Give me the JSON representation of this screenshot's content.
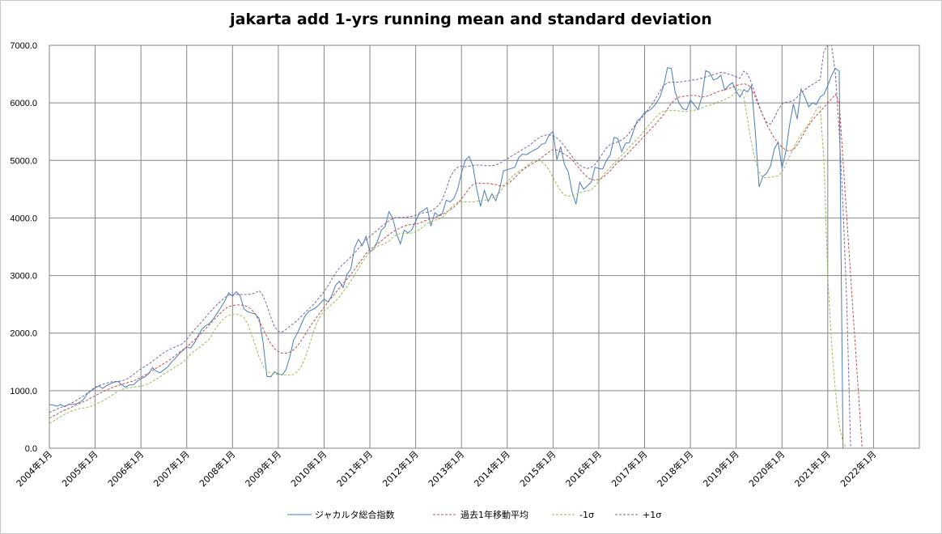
{
  "chart_data": {
    "type": "line",
    "title": "jakarta add 1-yrs running mean and standard deviation",
    "xlabel": "",
    "ylabel": "",
    "ylim": [
      0,
      7000
    ],
    "y_ticks": [
      "0.0",
      "1000.0",
      "2000.0",
      "3000.0",
      "4000.0",
      "5000.0",
      "6000.0",
      "7000.0"
    ],
    "x_ticks": [
      "2004年1月",
      "2005年1月",
      "2006年1月",
      "2007年1月",
      "2008年1月",
      "2009年1月",
      "2010年1月",
      "2011年1月",
      "2012年1月",
      "2013年1月",
      "2014年1月",
      "2015年1月",
      "2016年1月",
      "2017年1月",
      "2018年1月",
      "2019年1月",
      "2020年1月",
      "2021年1月",
      "2022年1月"
    ],
    "grid": true,
    "legend_position": "bottom",
    "x_start": "2004年1月",
    "x_step": "1 month",
    "series": [
      {
        "name": "ジャカルタ総合指数",
        "color": "#4a7ebb",
        "dash": "solid",
        "values": [
          760,
          750,
          730,
          760,
          720,
          760,
          760,
          770,
          800,
          850,
          950,
          1000,
          1050,
          1080,
          1040,
          1090,
          1120,
          1150,
          1160,
          1100,
          1060,
          1100,
          1100,
          1160,
          1210,
          1240,
          1290,
          1400,
          1340,
          1310,
          1360,
          1410,
          1500,
          1560,
          1640,
          1700,
          1760,
          1740,
          1830,
          1960,
          2070,
          2130,
          2170,
          2250,
          2350,
          2450,
          2560,
          2700,
          2640,
          2720,
          2650,
          2420,
          2370,
          2350,
          2330,
          2250,
          1850,
          1250,
          1240,
          1330,
          1290,
          1270,
          1360,
          1580,
          1880,
          2000,
          2150,
          2300,
          2380,
          2410,
          2450,
          2520,
          2590,
          2540,
          2650,
          2830,
          2900,
          2790,
          3020,
          3110,
          3480,
          3630,
          3520,
          3680,
          3410,
          3460,
          3600,
          3790,
          3850,
          4110,
          4000,
          3720,
          3550,
          3790,
          3740,
          3800,
          3940,
          4090,
          4130,
          4180,
          3860,
          4090,
          4040,
          4080,
          4310,
          4280,
          4340,
          4500,
          4780,
          5000,
          5070,
          4900,
          4500,
          4200,
          4480,
          4290,
          4420,
          4300,
          4500,
          4820,
          4840,
          4860,
          4880,
          5050,
          5110,
          5100,
          5140,
          5180,
          5210,
          5280,
          5300,
          5450,
          5500,
          5010,
          5240,
          4930,
          4800,
          4450,
          4240,
          4620,
          4500,
          4560,
          4620,
          4880,
          4860,
          4850,
          5000,
          5100,
          5400,
          5380,
          5150,
          5300,
          5310,
          5500,
          5680,
          5740,
          5830,
          5860,
          5910,
          5990,
          6100,
          6300,
          6610,
          6600,
          6190,
          6000,
          5900,
          5880,
          6050,
          5970,
          5880,
          6100,
          6560,
          6530,
          6400,
          6420,
          6480,
          6220,
          6300,
          6350,
          6200,
          6100,
          6230,
          6190,
          6300,
          5500,
          4540,
          4720,
          4780,
          4900,
          5200,
          5320,
          4870,
          5150,
          5620,
          5980,
          5720,
          6240,
          6100,
          5930,
          6000,
          5970,
          6100,
          6150,
          6300,
          6480,
          6600,
          6550,
          0
        ],
        "raw_last_note": "line drops to 0 at end"
      },
      {
        "name": "過去1年移動平均",
        "color": "#c0504d",
        "dash": "dashed",
        "values": [
          520,
          560,
          590,
          630,
          660,
          690,
          720,
          750,
          780,
          810,
          840,
          880,
          910,
          950,
          980,
          1010,
          1040,
          1070,
          1090,
          1110,
          1130,
          1150,
          1170,
          1200,
          1230,
          1270,
          1310,
          1350,
          1390,
          1430,
          1470,
          1510,
          1560,
          1610,
          1660,
          1710,
          1760,
          1820,
          1880,
          1940,
          2010,
          2080,
          2150,
          2220,
          2290,
          2360,
          2420,
          2460,
          2480,
          2490,
          2490,
          2480,
          2460,
          2410,
          2330,
          2210,
          2080,
          1940,
          1820,
          1730,
          1680,
          1650,
          1650,
          1670,
          1710,
          1780,
          1870,
          1970,
          2080,
          2180,
          2270,
          2360,
          2450,
          2540,
          2620,
          2700,
          2780,
          2860,
          2940,
          3020,
          3110,
          3200,
          3290,
          3380,
          3450,
          3500,
          3550,
          3600,
          3660,
          3710,
          3760,
          3800,
          3830,
          3860,
          3880,
          3890,
          3900,
          3910,
          3940,
          3970,
          3990,
          4010,
          4030,
          4060,
          4100,
          4140,
          4190,
          4250,
          4330,
          4420,
          4510,
          4580,
          4610,
          4600,
          4600,
          4600,
          4590,
          4580,
          4560,
          4560,
          4590,
          4640,
          4700,
          4770,
          4830,
          4880,
          4920,
          4960,
          5000,
          5050,
          5100,
          5150,
          5190,
          5180,
          5150,
          5110,
          5070,
          5010,
          4930,
          4850,
          4770,
          4710,
          4670,
          4660,
          4670,
          4700,
          4760,
          4820,
          4900,
          4970,
          5020,
          5080,
          5150,
          5220,
          5290,
          5360,
          5430,
          5500,
          5570,
          5640,
          5720,
          5800,
          5900,
          5990,
          6060,
          6100,
          6110,
          6120,
          6130,
          6130,
          6120,
          6100,
          6110,
          6130,
          6160,
          6190,
          6210,
          6230,
          6250,
          6270,
          6300,
          6320,
          6330,
          6320,
          6250,
          6100,
          5930,
          5780,
          5630,
          5500,
          5390,
          5300,
          5230,
          5180,
          5160,
          5190,
          5270,
          5380,
          5500,
          5610,
          5700,
          5780,
          5850,
          5920,
          6000,
          6070,
          6150,
          6000,
          5000,
          4000,
          3000,
          2000,
          1000,
          0
        ]
      },
      {
        "name": "-1σ",
        "color": "#9bbb59",
        "dash": "dashed",
        "values": [
          430,
          470,
          510,
          550,
          590,
          620,
          650,
          670,
          690,
          700,
          710,
          730,
          760,
          790,
          820,
          860,
          900,
          950,
          990,
          1020,
          1040,
          1050,
          1060,
          1070,
          1080,
          1100,
          1120,
          1160,
          1200,
          1240,
          1290,
          1330,
          1370,
          1410,
          1450,
          1500,
          1560,
          1630,
          1690,
          1740,
          1790,
          1840,
          1900,
          2020,
          2120,
          2200,
          2270,
          2310,
          2330,
          2330,
          2310,
          2270,
          2160,
          1980,
          1780,
          1580,
          1430,
          1340,
          1300,
          1290,
          1280,
          1280,
          1270,
          1270,
          1280,
          1330,
          1420,
          1570,
          1760,
          1980,
          2160,
          2300,
          2380,
          2440,
          2500,
          2560,
          2630,
          2720,
          2810,
          2910,
          3010,
          3120,
          3230,
          3330,
          3410,
          3470,
          3510,
          3530,
          3560,
          3600,
          3660,
          3710,
          3730,
          3730,
          3730,
          3740,
          3760,
          3800,
          3850,
          3900,
          3940,
          3960,
          3980,
          4010,
          4080,
          4160,
          4230,
          4270,
          4280,
          4280,
          4280,
          4280,
          4290,
          4300,
          4310,
          4320,
          4340,
          4380,
          4440,
          4540,
          4630,
          4700,
          4760,
          4810,
          4850,
          4900,
          4950,
          5000,
          5000,
          4980,
          4920,
          4830,
          4700,
          4580,
          4470,
          4400,
          4380,
          4390,
          4410,
          4440,
          4460,
          4470,
          4490,
          4550,
          4640,
          4730,
          4810,
          4880,
          4950,
          5020,
          5090,
          5160,
          5230,
          5300,
          5370,
          5440,
          5520,
          5600,
          5680,
          5760,
          5820,
          5860,
          5870,
          5870,
          5870,
          5860,
          5850,
          5850,
          5860,
          5870,
          5890,
          5910,
          5940,
          5960,
          5980,
          6010,
          6030,
          6060,
          6090,
          6130,
          6200,
          6250,
          6100,
          5700,
          5300,
          5000,
          4800,
          4700,
          4700,
          4710,
          4720,
          4730,
          4800,
          4930,
          5070,
          5210,
          5340,
          5450,
          5540,
          5640,
          5760,
          5880,
          5950,
          5000,
          3000,
          1800,
          1000,
          400,
          100,
          0
        ]
      },
      {
        "name": "+1σ",
        "color": "#8064a2",
        "dash": "dashed",
        "values": [
          620,
          650,
          680,
          710,
          730,
          760,
          790,
          830,
          870,
          910,
          960,
          1010,
          1060,
          1090,
          1110,
          1130,
          1150,
          1160,
          1160,
          1170,
          1190,
          1230,
          1280,
          1330,
          1380,
          1420,
          1460,
          1510,
          1560,
          1610,
          1660,
          1700,
          1730,
          1760,
          1790,
          1820,
          1890,
          1980,
          2060,
          2130,
          2200,
          2280,
          2360,
          2430,
          2500,
          2560,
          2620,
          2660,
          2670,
          2670,
          2670,
          2670,
          2670,
          2680,
          2700,
          2740,
          2650,
          2480,
          2280,
          2110,
          2030,
          2020,
          2060,
          2120,
          2170,
          2220,
          2290,
          2360,
          2420,
          2480,
          2560,
          2640,
          2720,
          2820,
          2930,
          3040,
          3130,
          3200,
          3260,
          3320,
          3390,
          3470,
          3550,
          3620,
          3680,
          3740,
          3790,
          3850,
          3900,
          3950,
          3990,
          4010,
          4010,
          4010,
          4020,
          4030,
          4050,
          4070,
          4090,
          4100,
          4120,
          4160,
          4220,
          4320,
          4500,
          4700,
          4820,
          4880,
          4900,
          4890,
          4900,
          4910,
          4920,
          4920,
          4910,
          4910,
          4910,
          4920,
          4950,
          4990,
          5030,
          5070,
          5110,
          5150,
          5190,
          5230,
          5270,
          5330,
          5380,
          5420,
          5440,
          5440,
          5430,
          5390,
          5330,
          5250,
          5160,
          5070,
          4980,
          4920,
          4880,
          4860,
          4880,
          4930,
          5020,
          5120,
          5220,
          5280,
          5300,
          5320,
          5360,
          5400,
          5480,
          5570,
          5650,
          5720,
          5800,
          5890,
          5980,
          6090,
          6200,
          6300,
          6350,
          6360,
          6360,
          6360,
          6370,
          6380,
          6390,
          6400,
          6410,
          6430,
          6450,
          6470,
          6490,
          6510,
          6530,
          6520,
          6500,
          6480,
          6450,
          6430,
          6550,
          6500,
          6350,
          6150,
          5950,
          5780,
          5660,
          5630,
          5740,
          5880,
          5980,
          6010,
          6020,
          6040,
          6100,
          6170,
          6230,
          6280,
          6320,
          6360,
          6400,
          6900,
          7000,
          7000,
          6500,
          5500,
          4200,
          2500,
          0
        ]
      }
    ]
  }
}
